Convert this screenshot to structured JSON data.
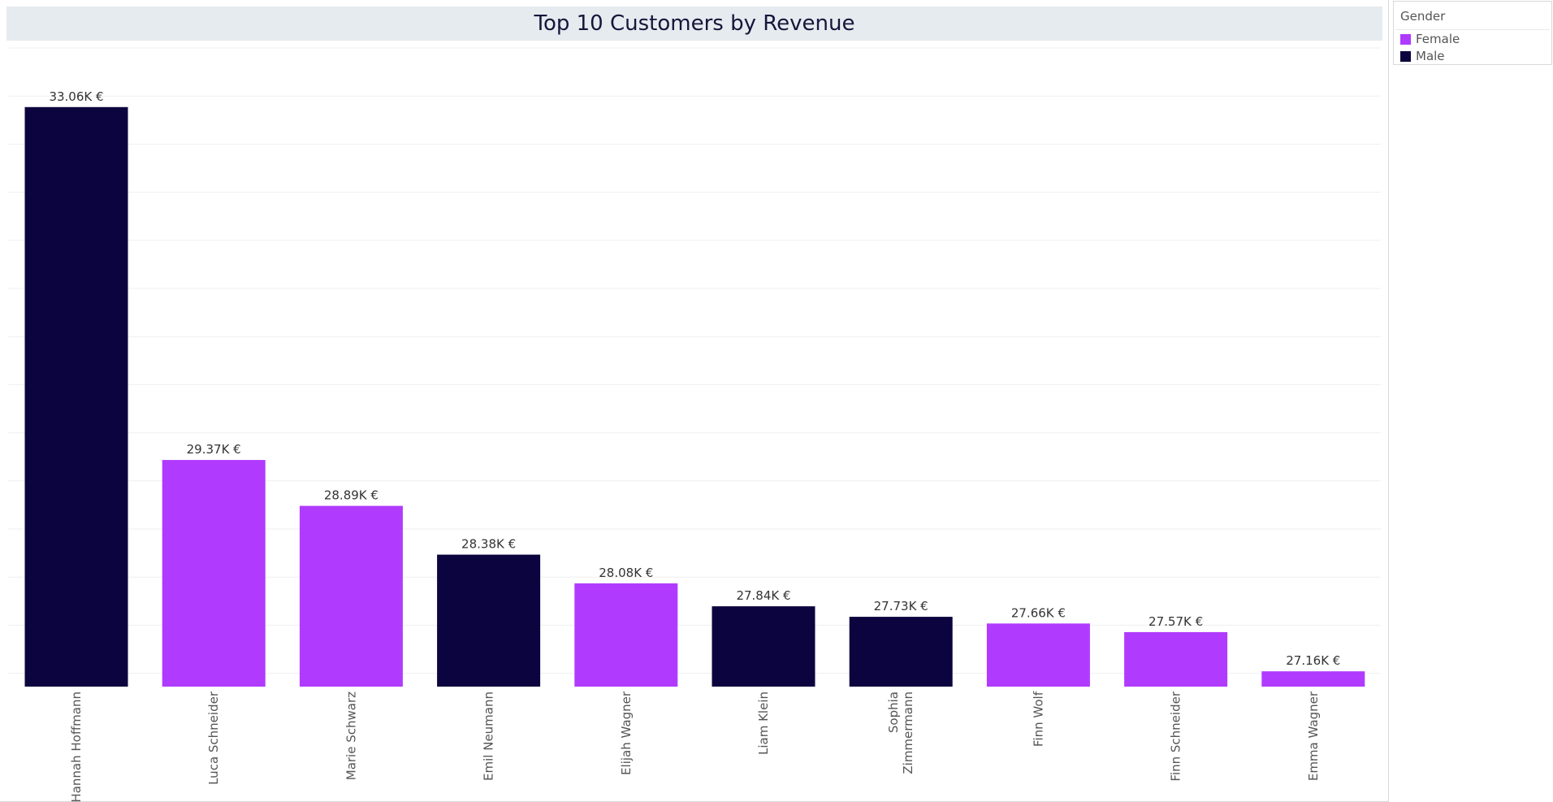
{
  "chart_data": {
    "type": "bar",
    "title": "Top 10 Customers by Revenue",
    "xlabel": "",
    "ylabel": "",
    "categories": [
      "Hannah Hoffmann",
      "Luca Schneider",
      "Marie Schwarz",
      "Emil Neumann",
      "Elijah Wagner",
      "Liam Klein",
      "Sophia Zimmermann",
      "Finn Wolf",
      "Finn Schneider",
      "Emma Wagner"
    ],
    "category_label_lines": [
      [
        "Hannah Hoffmann"
      ],
      [
        "Luca Schneider"
      ],
      [
        "Marie Schwarz"
      ],
      [
        "Emil Neumann"
      ],
      [
        "Elijah Wagner"
      ],
      [
        "Liam Klein"
      ],
      [
        "Sophia",
        "Zimmermann"
      ],
      [
        "Finn Wolf"
      ],
      [
        "Finn Schneider"
      ],
      [
        "Emma Wagner"
      ]
    ],
    "values": [
      33.06,
      29.37,
      28.89,
      28.38,
      28.08,
      27.84,
      27.73,
      27.66,
      27.57,
      27.16
    ],
    "value_unit": "K €",
    "data_labels": [
      "33.06K €",
      "29.37K €",
      "28.89K €",
      "28.38K €",
      "28.08K €",
      "27.84K €",
      "27.73K €",
      "27.66K €",
      "27.57K €",
      "27.16K €"
    ],
    "gender": [
      "Male",
      "Female",
      "Female",
      "Male",
      "Female",
      "Male",
      "Male",
      "Female",
      "Female",
      "Female"
    ],
    "ylim": [
      27.0,
      33.33
    ],
    "y_axis_visible": false,
    "grid": true,
    "legend": {
      "title": "Gender",
      "position": "top-right",
      "items": [
        {
          "label": "Female",
          "color": "#b03bff"
        },
        {
          "label": "Male",
          "color": "#0c043e"
        }
      ]
    },
    "colors": {
      "Female": "#b03bff",
      "Male": "#0c043e"
    }
  }
}
